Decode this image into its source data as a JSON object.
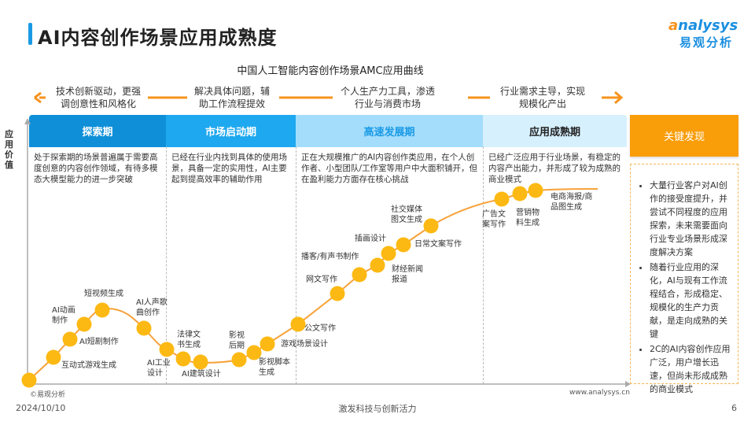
{
  "header": {
    "title": "AI内容创作场景应用成熟度",
    "logo_en": "analysys",
    "logo_cn": "易观分析"
  },
  "diagram": {
    "subtitle": "中国人工智能内容创作场景AMC应用曲线",
    "y_axis_label": "应用价值",
    "trends": [
      "技术创新驱动，更强\n调创意性和风格化",
      "解决具体问题，辅\n助工作流程提效",
      "个人生产力工具，渗透\n行业与消费市场",
      "行业需求主导，实现\n规模化产出"
    ],
    "phases": [
      {
        "name": "探索期",
        "color": "#0f8fd8",
        "desc": "处于探索期的场景普遍属于需要高度创意的内容创作领域，有待多模态大模型能力的进一步突破"
      },
      {
        "name": "市场启动期",
        "color": "#1ea8ef",
        "desc": "已经在行业内找到具体的使用场景，具备一定的实用性，AI主要起到提高效率的辅助作用"
      },
      {
        "name": "高速发展期",
        "color": "#a3ddfb",
        "desc": "正在大规模推广的AI内容创作类应用，在个人创作者、小型团队/工作室等用户中大面积铺开，但在盈利能力方面存在核心挑战"
      },
      {
        "name": "应用成熟期",
        "color": "#d6f0fd",
        "desc": "已经广泛应用于行业场景，有稳定的内容产出能力，并形成了较为成熟的商业模式"
      }
    ],
    "scenarios": [
      "互动式游戏生成",
      "AI短剧制作",
      "AI动画\n制作",
      "短视频生成",
      "AI人声歌\n曲创作",
      "AI工业\n设计",
      "法律文\n书生成",
      "AI建筑设计",
      "影视\n后期",
      "影视脚本\n生成",
      "游戏场景设计",
      "公文写作",
      "网文写作",
      "播客/有声书制作",
      "财经新闻\n报道",
      "插画设计",
      "日常文案写作",
      "社交媒体\n图文生成",
      "广告文\n案写作",
      "营销物\n料生成",
      "电商海报/商\n品图生成"
    ],
    "curve_color": "#f7a23a",
    "point_color": "#fdb913"
  },
  "key_findings": {
    "title": "关键发现",
    "items": [
      "大量行业客户对AI创作的接受度提升，并尝试不同程度的应用探索，未来需要面向行业专业场景形成深度解决方案",
      "随着行业应用的深化，AI与现有工作流程结合，形成稳定、规模化的生产力贡献，是走向成熟的关键",
      "2C的AI内容创作应用广泛，用户增长迅速，但尚未形成成熟的商业模式"
    ]
  },
  "footer": {
    "source": "©易观分析",
    "url": "www.analysys.cn",
    "date": "2024/10/10",
    "slogan": "激发科技与创新活力",
    "page": "6"
  }
}
